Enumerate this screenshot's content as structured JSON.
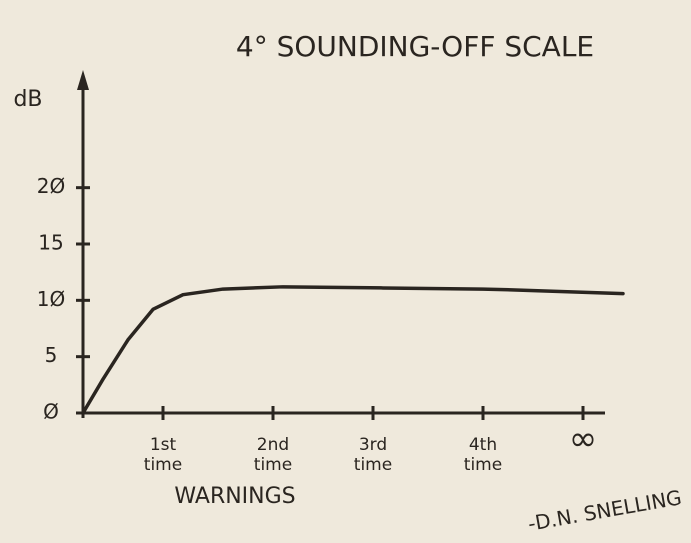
{
  "chart_data": {
    "type": "line",
    "title": "4° SOUNDING-OFF SCALE",
    "y_label": "dB",
    "x_label": "WARNINGS",
    "signature": "-D.N. SNELLING",
    "x": [
      0,
      0.2,
      0.45,
      0.7,
      1,
      1.4,
      2,
      3,
      4,
      4.4,
      5.4
    ],
    "series": [
      {
        "color": "#2a2520",
        "values": [
          0,
          3,
          6.5,
          9.2,
          10.5,
          11,
          11.2,
          11.1,
          11,
          10.9,
          10.6
        ]
      }
    ],
    "xlim": [
      0,
      5.4
    ],
    "ylim": [
      0,
      30
    ],
    "xticks": [
      {
        "value": 0.8,
        "label": "1st time"
      },
      {
        "value": 1.9,
        "label": "2nd time"
      },
      {
        "value": 2.9,
        "label": "3rd time"
      },
      {
        "value": 4,
        "label": "4th time"
      },
      {
        "value": 5,
        "label": "∞"
      }
    ],
    "yticks": [
      {
        "value": 0,
        "label": "Ø"
      },
      5,
      {
        "value": 10,
        "label": "1Ø"
      },
      15,
      {
        "value": 20,
        "label": "2Ø"
      }
    ]
  }
}
